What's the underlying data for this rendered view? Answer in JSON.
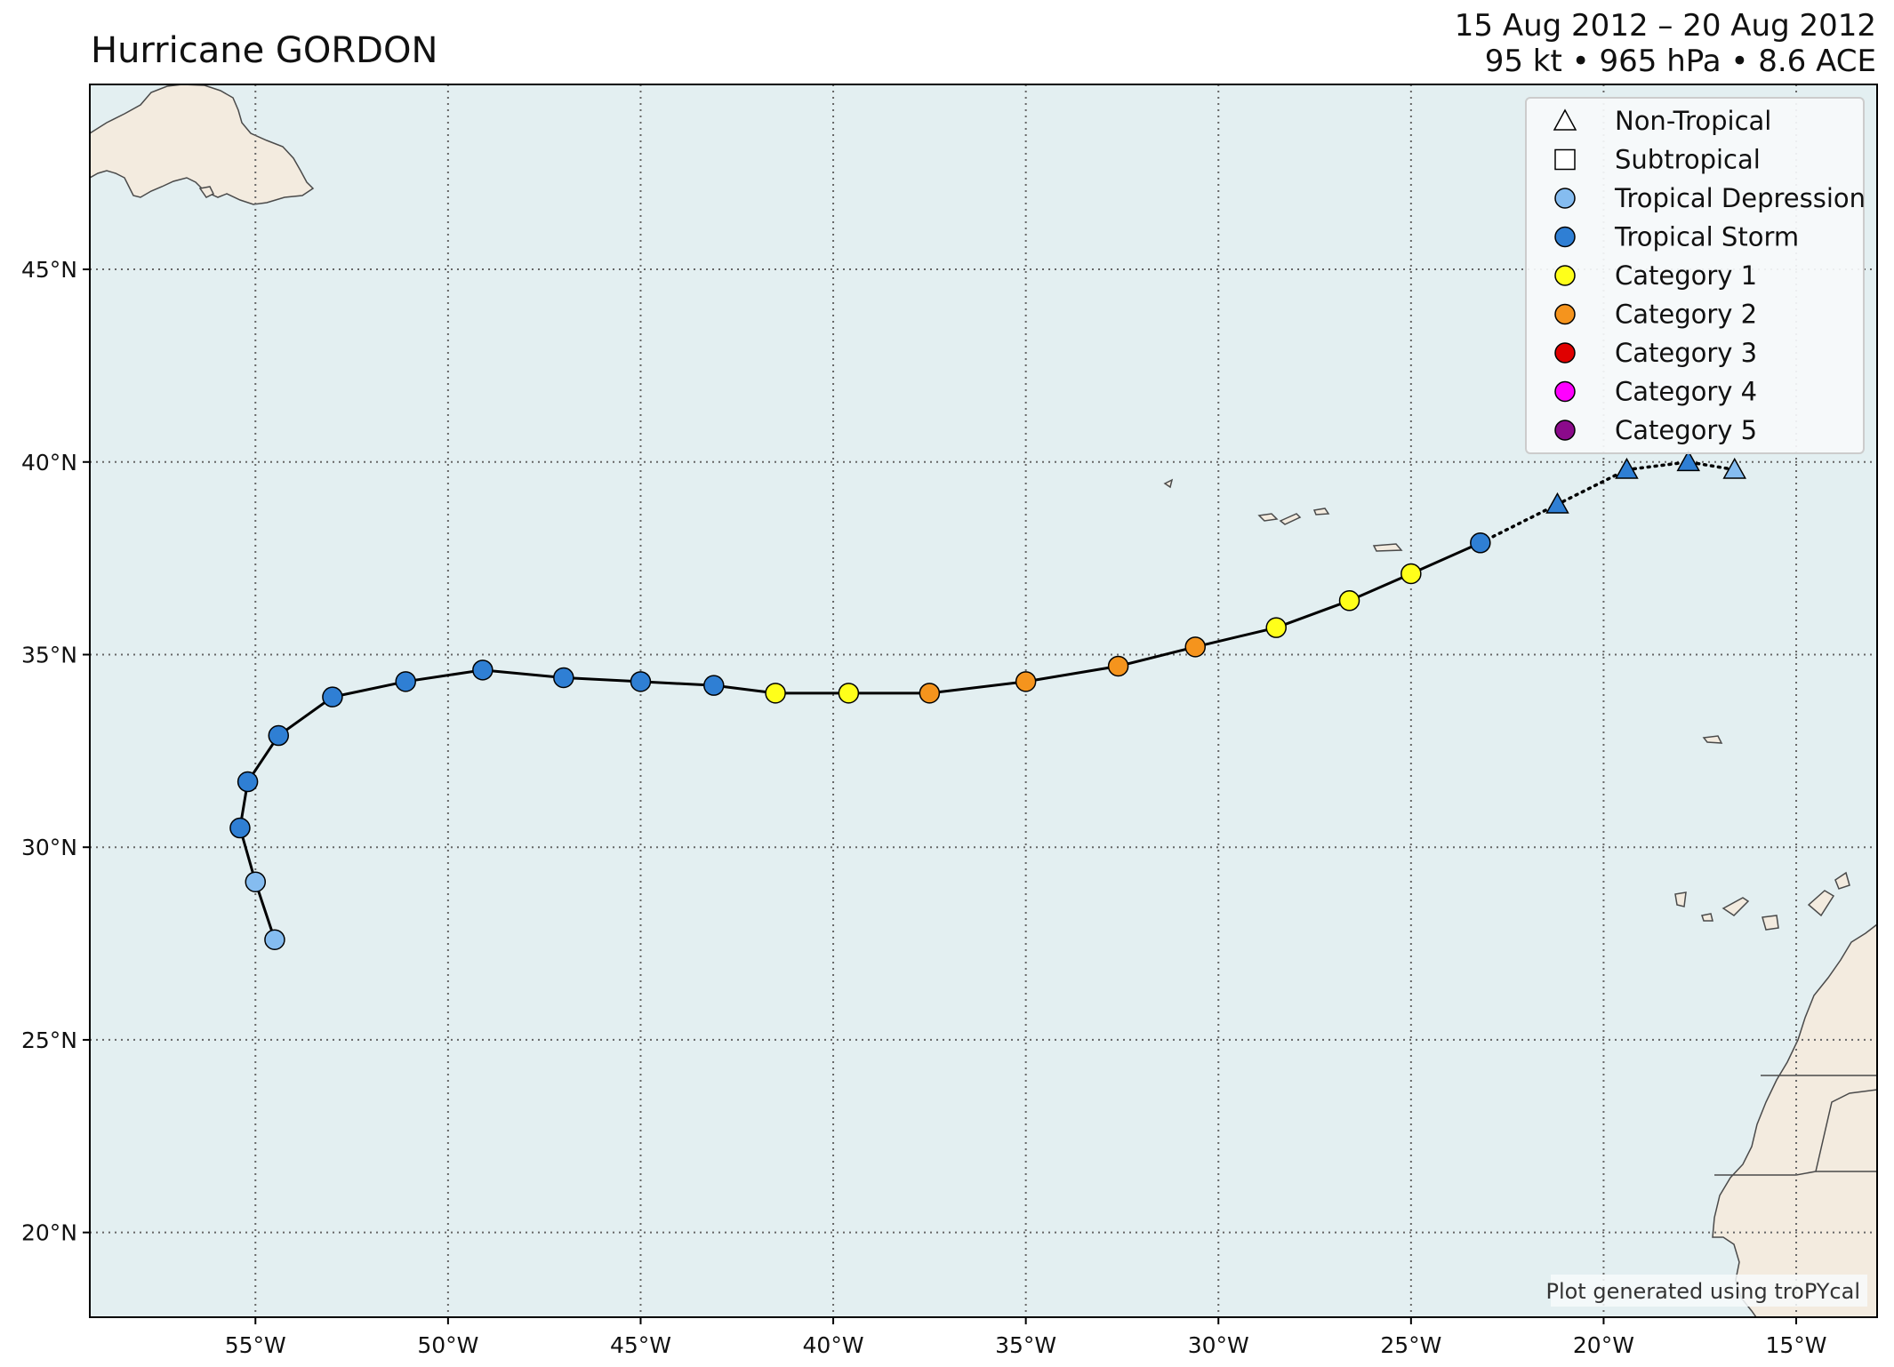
{
  "title": "Hurricane GORDON",
  "date_range": "15 Aug 2012 – 20 Aug 2012",
  "stats": "95 kt • 965 hPa • 8.6 ACE",
  "credit": "Plot generated using troPYcal",
  "colors": {
    "ocean": "#e3eff1",
    "land": "#f3ebdf",
    "coast": "#4a4a4a",
    "grid": "#666666",
    "track": "#000000",
    "tropical_depression": "#85bcf0",
    "tropical_storm": "#2f7fd4",
    "category_1": "#ffff1a",
    "category_2": "#f5941d",
    "category_3": "#e00000",
    "category_4": "#ff00ff",
    "category_5": "#8b0a8b"
  },
  "legend": [
    {
      "label": "Non-Tropical",
      "shape": "triangle",
      "color": "#ffffff"
    },
    {
      "label": "Subtropical",
      "shape": "square",
      "color": "#ffffff"
    },
    {
      "label": "Tropical Depression",
      "shape": "circle",
      "color": "#85bcf0"
    },
    {
      "label": "Tropical Storm",
      "shape": "circle",
      "color": "#2f7fd4"
    },
    {
      "label": "Category 1",
      "shape": "circle",
      "color": "#ffff1a"
    },
    {
      "label": "Category 2",
      "shape": "circle",
      "color": "#f5941d"
    },
    {
      "label": "Category 3",
      "shape": "circle",
      "color": "#e00000"
    },
    {
      "label": "Category 4",
      "shape": "circle",
      "color": "#ff00ff"
    },
    {
      "label": "Category 5",
      "shape": "circle",
      "color": "#8b0a8b"
    }
  ],
  "map_extent": {
    "lon": [
      -59.3,
      -12.9
    ],
    "lat": [
      17.8,
      49.8
    ]
  },
  "x_ticks": [
    {
      "lon": -55,
      "label": "55°W"
    },
    {
      "lon": -50,
      "label": "50°W"
    },
    {
      "lon": -45,
      "label": "45°W"
    },
    {
      "lon": -40,
      "label": "40°W"
    },
    {
      "lon": -35,
      "label": "35°W"
    },
    {
      "lon": -30,
      "label": "30°W"
    },
    {
      "lon": -25,
      "label": "25°W"
    },
    {
      "lon": -20,
      "label": "20°W"
    },
    {
      "lon": -15,
      "label": "15°W"
    }
  ],
  "y_ticks": [
    {
      "lat": 45,
      "label": "45°N"
    },
    {
      "lat": 40,
      "label": "40°N"
    },
    {
      "lat": 35,
      "label": "35°N"
    },
    {
      "lat": 30,
      "label": "30°N"
    },
    {
      "lat": 25,
      "label": "25°N"
    },
    {
      "lat": 20,
      "label": "20°N"
    }
  ],
  "track_points": [
    {
      "lon": -54.5,
      "lat": 27.6,
      "type": "tropical_depression"
    },
    {
      "lon": -55.0,
      "lat": 29.1,
      "type": "tropical_depression"
    },
    {
      "lon": -55.4,
      "lat": 30.5,
      "type": "tropical_storm"
    },
    {
      "lon": -55.2,
      "lat": 31.7,
      "type": "tropical_storm"
    },
    {
      "lon": -54.4,
      "lat": 32.9,
      "type": "tropical_storm"
    },
    {
      "lon": -53.0,
      "lat": 33.9,
      "type": "tropical_storm"
    },
    {
      "lon": -51.1,
      "lat": 34.3,
      "type": "tropical_storm"
    },
    {
      "lon": -49.1,
      "lat": 34.6,
      "type": "tropical_storm"
    },
    {
      "lon": -47.0,
      "lat": 34.4,
      "type": "tropical_storm"
    },
    {
      "lon": -45.0,
      "lat": 34.3,
      "type": "tropical_storm"
    },
    {
      "lon": -43.1,
      "lat": 34.2,
      "type": "tropical_storm"
    },
    {
      "lon": -41.5,
      "lat": 34.0,
      "type": "category_1"
    },
    {
      "lon": -39.6,
      "lat": 34.0,
      "type": "category_1"
    },
    {
      "lon": -37.5,
      "lat": 34.0,
      "type": "category_2"
    },
    {
      "lon": -35.0,
      "lat": 34.3,
      "type": "category_2"
    },
    {
      "lon": -32.6,
      "lat": 34.7,
      "type": "category_2"
    },
    {
      "lon": -30.6,
      "lat": 35.2,
      "type": "category_2"
    },
    {
      "lon": -28.5,
      "lat": 35.7,
      "type": "category_1"
    },
    {
      "lon": -26.6,
      "lat": 36.4,
      "type": "category_1"
    },
    {
      "lon": -25.0,
      "lat": 37.1,
      "type": "category_1"
    },
    {
      "lon": -23.2,
      "lat": 37.9,
      "type": "tropical_storm"
    },
    {
      "lon": -21.2,
      "lat": 38.9,
      "type": "tropical_storm",
      "shape": "triangle"
    },
    {
      "lon": -19.4,
      "lat": 39.8,
      "type": "tropical_storm",
      "shape": "triangle"
    },
    {
      "lon": -17.8,
      "lat": 40.0,
      "type": "tropical_storm",
      "shape": "triangle"
    },
    {
      "lon": -16.6,
      "lat": 39.8,
      "type": "tropical_depression",
      "shape": "triangle"
    }
  ],
  "tropical_segment_end_index": 20
}
